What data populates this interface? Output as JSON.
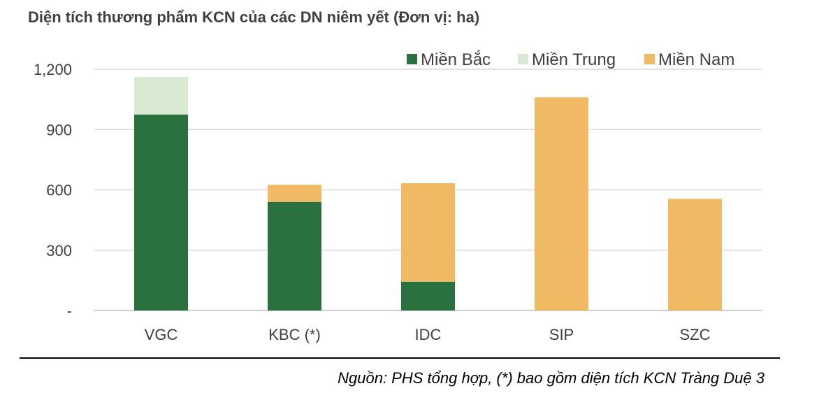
{
  "title": "Diện tích thương phẩm KCN của các DN niêm yết (Đơn vị: ha)",
  "source": "Nguồn: PHS tổng hợp, (*) bao gồm diện tích KCN Tràng Duệ 3",
  "chart_data": {
    "type": "bar",
    "stacked": true,
    "categories": [
      "VGC",
      "KBC (*)",
      "IDC",
      "SIP",
      "SZC"
    ],
    "series": [
      {
        "name": "Miền Bắc",
        "color": "#2a7140",
        "values": [
          975,
          540,
          143,
          0,
          0
        ]
      },
      {
        "name": "Miền Trung",
        "color": "#d9ead3",
        "values": [
          187,
          0,
          0,
          0,
          0
        ]
      },
      {
        "name": "Miền Nam",
        "color": "#f0b963",
        "values": [
          0,
          85,
          490,
          1060,
          555
        ]
      }
    ],
    "ylim": [
      0,
      1200
    ],
    "yticks": [
      0,
      300,
      600,
      900,
      1200
    ],
    "ytick_labels": [
      "-",
      "300",
      "600",
      "900",
      "1,200"
    ],
    "grid": true,
    "legend_position": "top-right",
    "xlabel": "",
    "ylabel": ""
  }
}
